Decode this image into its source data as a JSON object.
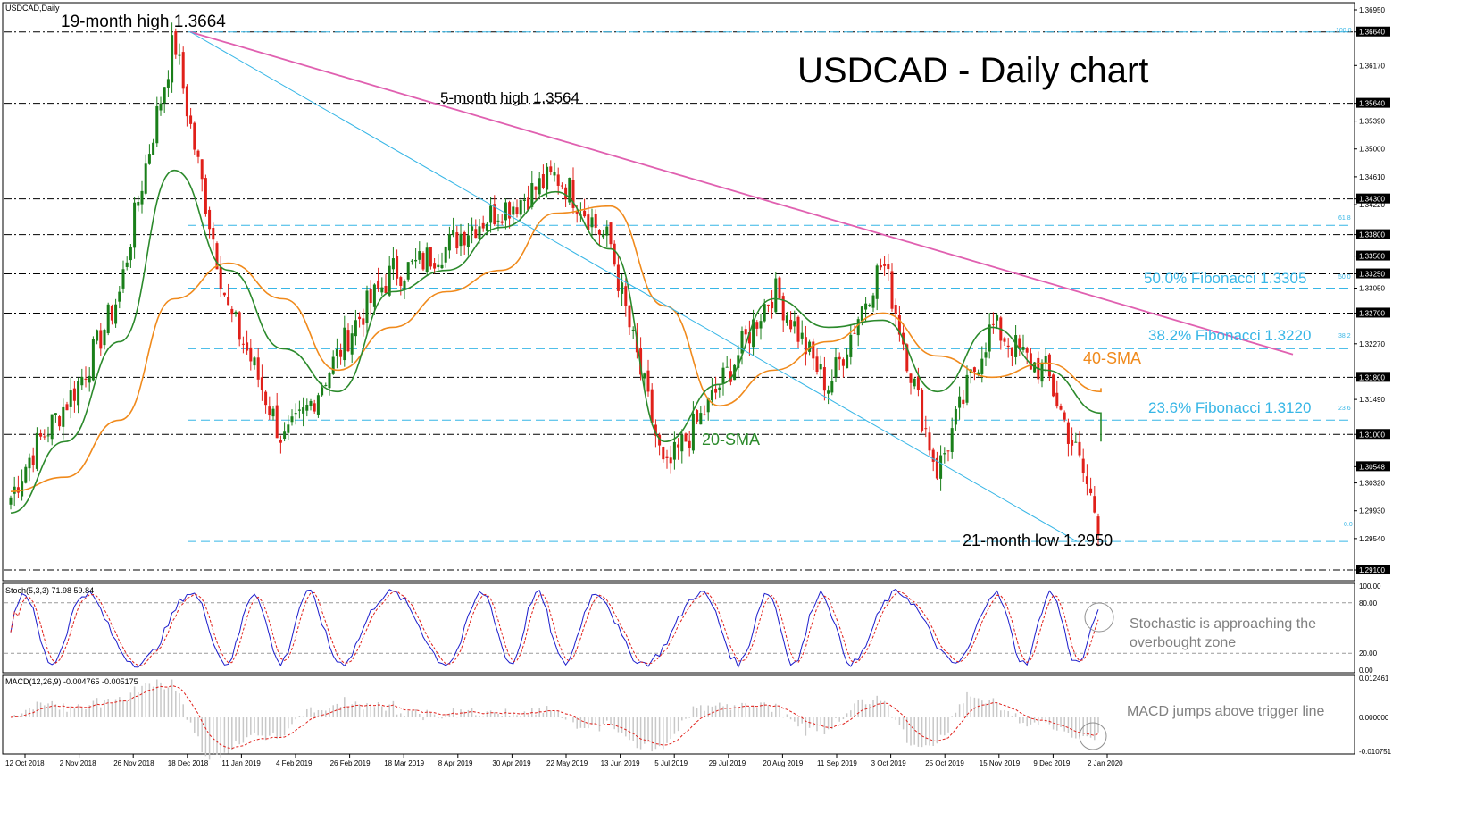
{
  "header": {
    "symbol_label": "USDCAD,Daily",
    "chart_title": "USDCAD - Daily chart",
    "stoch_header": "Stoch(5,3,3) 71.98 59.84",
    "macd_header": "MACD(12,26,9) -0.004765 -0.005175"
  },
  "colors": {
    "candle_up": "#1a7f1a",
    "candle_down": "#e0201a",
    "sma20": "#2c8a2c",
    "sma40": "#f08a1c",
    "downtrend": "#e060b0",
    "fib_channel": "#37b6e6",
    "stoch_main": "#1c1ccc",
    "stoch_signal": "#e0201a",
    "macd_hist": "#c8c8c8",
    "macd_signal": "#e0201a"
  },
  "annotations": {
    "high19": "19-month high 1.3664",
    "high5": "5-month high 1.3564",
    "low21": "21-month low 1.2950",
    "sma20": "20-SMA",
    "sma40": "40-SMA",
    "fib50": "50.0% Fibonacci 1.3305",
    "fib382": "38.2% Fibonacci 1.3220",
    "fib236": "23.6% Fibonacci 1.3120",
    "stoch_note1": "Stochastic is approaching the",
    "stoch_note2": "overbought zone",
    "macd_note": "MACD jumps above trigger line"
  },
  "fib_small_labels": {
    "f100": "100.0",
    "f618": "61.8",
    "f50": "50.0",
    "f382": "38.2",
    "f236": "23.6",
    "f0": "0.0"
  },
  "price_axis": {
    "ticks": [
      "1.36950",
      "1.36640",
      "1.36170",
      "1.35640",
      "1.35390",
      "1.35000",
      "1.34610",
      "1.34300",
      "1.34220",
      "1.33800",
      "1.33500",
      "1.33250",
      "1.33050",
      "1.32700",
      "1.32270",
      "1.31800",
      "1.31490",
      "1.31000",
      "1.30548",
      "1.30320",
      "1.29930",
      "1.29540",
      "1.29100"
    ],
    "highlighted": [
      "1.36640",
      "1.35640",
      "1.34300",
      "1.33800",
      "1.33500",
      "1.33250",
      "1.32700",
      "1.31800",
      "1.31000",
      "1.30548",
      "1.29100"
    ]
  },
  "stoch_axis": {
    "ticks": [
      "100.00",
      "80.00",
      "20.00",
      "0.00"
    ]
  },
  "macd_axis": {
    "ticks": [
      "0.012461",
      "0.000000",
      "-0.010751"
    ]
  },
  "time_axis": {
    "labels": [
      "12 Oct 2018",
      "2 Nov 2018",
      "26 Nov 2018",
      "18 Dec 2018",
      "11 Jan 2019",
      "4 Feb 2019",
      "26 Feb 2019",
      "18 Mar 2019",
      "8 Apr 2019",
      "30 Apr 2019",
      "22 May 2019",
      "13 Jun 2019",
      "5 Jul 2019",
      "29 Jul 2019",
      "20 Aug 2019",
      "11 Sep 2019",
      "3 Oct 2019",
      "25 Oct 2019",
      "15 Nov 2019",
      "9 Dec 2019",
      "2 Jan 2020"
    ]
  },
  "chart_data": {
    "type": "candlestick",
    "title": "USDCAD - Daily chart",
    "symbol": "USDCAD,Daily",
    "timeframe": "Daily",
    "x_range": [
      "12 Oct 2018",
      "2 Jan 2020"
    ],
    "ylim": [
      1.2895,
      1.3705
    ],
    "close_path": [
      {
        "x": "12 Oct 2018",
        "y": 1.3005
      },
      {
        "x": "2 Nov 2018",
        "y": 1.315
      },
      {
        "x": "26 Nov 2018",
        "y": 1.329
      },
      {
        "x": "18 Dec 2018",
        "y": 1.3664
      },
      {
        "x": "11 Jan 2019",
        "y": 1.326
      },
      {
        "x": "4 Feb 2019",
        "y": 1.31
      },
      {
        "x": "26 Feb 2019",
        "y": 1.32
      },
      {
        "x": "18 Mar 2019",
        "y": 1.334
      },
      {
        "x": "8 Apr 2019",
        "y": 1.335
      },
      {
        "x": "30 Apr 2019",
        "y": 1.343
      },
      {
        "x": "22 May 2019",
        "y": 1.345
      },
      {
        "x": "13 Jun 2019",
        "y": 1.338
      },
      {
        "x": "5 Jul 2019",
        "y": 1.303
      },
      {
        "x": "29 Jul 2019",
        "y": 1.318
      },
      {
        "x": "20 Aug 2019",
        "y": 1.329
      },
      {
        "x": "11 Sep 2019",
        "y": 1.318
      },
      {
        "x": "3 Oct 2019",
        "y": 1.333
      },
      {
        "x": "25 Oct 2019",
        "y": 1.306
      },
      {
        "x": "15 Nov 2019",
        "y": 1.324
      },
      {
        "x": "9 Dec 2019",
        "y": 1.32
      },
      {
        "x": "2 Jan 2020",
        "y": 1.2955
      },
      {
        "x": "end",
        "y": 1.3055
      }
    ],
    "sma20_path": [
      1.299,
      1.309,
      1.323,
      1.347,
      1.333,
      1.322,
      1.316,
      1.33,
      1.333,
      1.339,
      1.344,
      1.336,
      1.309,
      1.317,
      1.329,
      1.325,
      1.326,
      1.316,
      1.325,
      1.319,
      1.313,
      1.309
    ],
    "sma40_path": [
      1.302,
      1.304,
      1.312,
      1.329,
      1.334,
      1.329,
      1.319,
      1.325,
      1.33,
      1.333,
      1.341,
      1.342,
      1.328,
      1.314,
      1.319,
      1.323,
      1.327,
      1.321,
      1.318,
      1.32,
      1.316,
      1.3165
    ],
    "levels": {
      "dashed_levels": [
        1.3664,
        1.3564,
        1.343,
        1.338,
        1.335,
        1.3325,
        1.327,
        1.318,
        1.31,
        1.291
      ],
      "fibonacci": [
        {
          "pct": "100.0",
          "price": 1.3664
        },
        {
          "pct": "61.8",
          "price": 1.3393
        },
        {
          "pct": "50.0",
          "price": 1.3305
        },
        {
          "pct": "38.2",
          "price": 1.322
        },
        {
          "pct": "23.6",
          "price": 1.312
        },
        {
          "pct": "0.0",
          "price": 1.295
        }
      ],
      "last_price": 1.30548
    },
    "trendlines": [
      {
        "name": "downtrend",
        "from": {
          "x": "18 Dec 2018",
          "y": 1.3664
        },
        "to": {
          "x": "end",
          "y": 1.3212
        }
      },
      {
        "name": "fib_base",
        "from": {
          "x": "18 Dec 2018",
          "y": 1.3664
        },
        "to": {
          "x": "2 Jan 2020",
          "y": 1.295
        }
      }
    ],
    "stochastic": {
      "params": "5,3,3",
      "main": 71.98,
      "signal": 59.84,
      "ylim": [
        0,
        100
      ],
      "levels": [
        20,
        80
      ]
    },
    "macd": {
      "params": "12,26,9",
      "main": -0.004765,
      "signal": -0.005175,
      "ylim": [
        -0.010751,
        0.012461
      ]
    }
  }
}
